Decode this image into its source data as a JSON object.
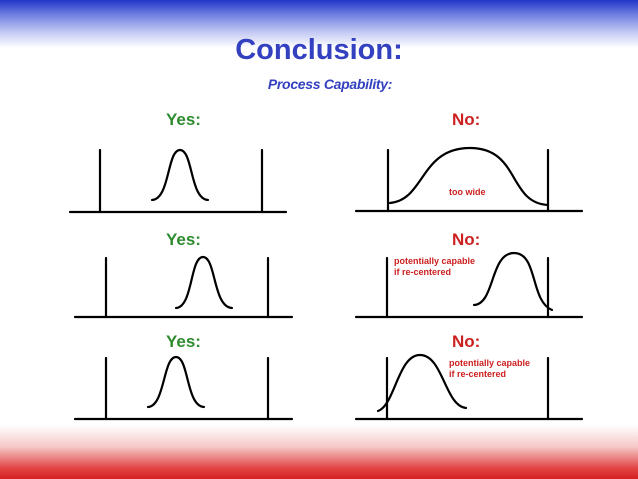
{
  "title": "Conclusion:",
  "subtitle": "Process Capability:",
  "panels": [
    {
      "verdict": "Yes:",
      "note": ""
    },
    {
      "verdict": "No:",
      "note": "too wide"
    },
    {
      "verdict": "Yes:",
      "note": ""
    },
    {
      "verdict": "No:",
      "note": "potentially capable\nif re-centered"
    },
    {
      "verdict": "Yes:",
      "note": ""
    },
    {
      "verdict": "No:",
      "note": "potentially capable\nif re-centered"
    }
  ],
  "colors": {
    "title": "#3340c0",
    "yes": "#2e8b2e",
    "no": "#cc1f1f",
    "top_band": "#2236c8",
    "bottom_band": "#d62020"
  }
}
